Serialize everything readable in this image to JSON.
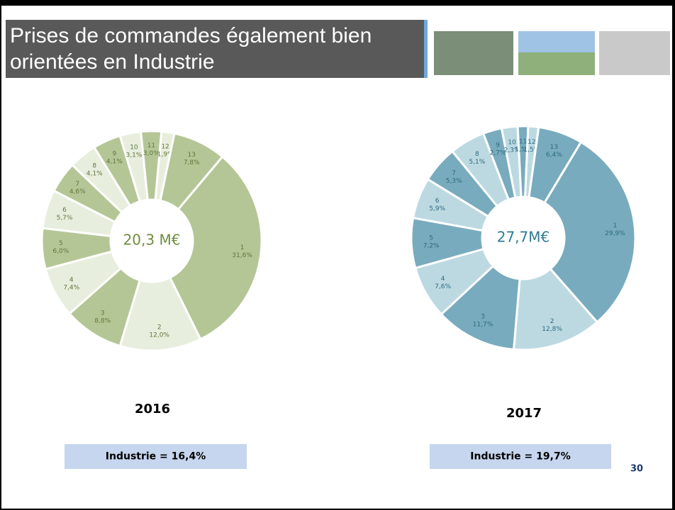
{
  "slide": {
    "title": "Prises de commandes également bien orientées en Industrie",
    "page_number": "30"
  },
  "chart_data": [
    {
      "type": "donut",
      "title": "2016",
      "center_label": "20,3 M€",
      "caption": "Industrie = 16,4%",
      "categories": [
        "1",
        "2",
        "3",
        "4",
        "5",
        "6",
        "7",
        "8",
        "9",
        "10",
        "11",
        "12",
        "13"
      ],
      "values": [
        31.6,
        12.0,
        8.8,
        7.4,
        6.0,
        5.7,
        4.6,
        4.1,
        4.1,
        3.1,
        3.0,
        1.9,
        7.8
      ],
      "value_labels": [
        "31,6%",
        "12,0%",
        "8,8%",
        "7,4%",
        "6,0%",
        "5,7%",
        "4,6%",
        "4,1%",
        "4,1%",
        "3,1%",
        "3,0%",
        "1,9%",
        "7,8%"
      ],
      "colors": [
        "#b4c695",
        "#e8eedd"
      ],
      "label_color": "#61763d",
      "center_color": "#6f8c3f"
    },
    {
      "type": "donut",
      "title": "2017",
      "center_label": "27,7M€",
      "caption": "Industrie = 19,7%",
      "categories": [
        "1",
        "2",
        "3",
        "4",
        "5",
        "6",
        "7",
        "8",
        "9",
        "10",
        "11",
        "12",
        "13"
      ],
      "values": [
        29.9,
        12.8,
        11.7,
        7.6,
        7.2,
        5.9,
        5.3,
        5.1,
        2.7,
        2.3,
        1.5,
        1.5,
        6.4
      ],
      "value_labels": [
        "29,9%",
        "12,8%",
        "11,7%",
        "7,6%",
        "7,2%",
        "5,9%",
        "5,3%",
        "5,1%",
        "2,7%",
        "2,3%",
        "1,5%",
        "1,5%",
        "6,4%"
      ],
      "colors": [
        "#78abbd",
        "#bcd9e2"
      ],
      "label_color": "#2c6a7c",
      "center_color": "#2f7b92"
    }
  ]
}
